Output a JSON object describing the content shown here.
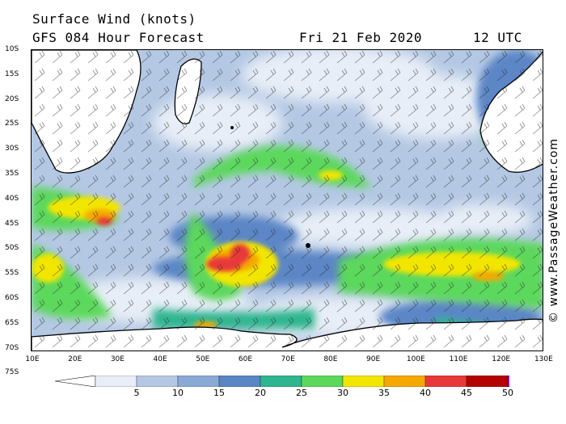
{
  "header": {
    "title": "Surface Wind (knots)",
    "forecast": "GFS 084 Hour Forecast",
    "date": "Fri 21 Feb 2020",
    "time": "12 UTC"
  },
  "credit": "© www.PassageWeather.com",
  "axes": {
    "lat_labels": [
      "10S",
      "15S",
      "20S",
      "25S",
      "30S",
      "35S",
      "40S",
      "45S",
      "50S",
      "55S",
      "60S",
      "65S",
      "70S",
      "75S"
    ],
    "lon_labels": [
      "10E",
      "20E",
      "30E",
      "40E",
      "50E",
      "60E",
      "70E",
      "80E",
      "90E",
      "100E",
      "110E",
      "120E",
      "130E"
    ]
  },
  "legend": {
    "values": [
      "5",
      "10",
      "15",
      "20",
      "25",
      "30",
      "35",
      "40",
      "45",
      "50"
    ],
    "colors": [
      "#e8eef7",
      "#b4c8e4",
      "#8aaad6",
      "#5b86c6",
      "#2fb58f",
      "#5bd85b",
      "#f2e600",
      "#f5a800",
      "#e8383a",
      "#b40000",
      "#c800c8"
    ]
  }
}
